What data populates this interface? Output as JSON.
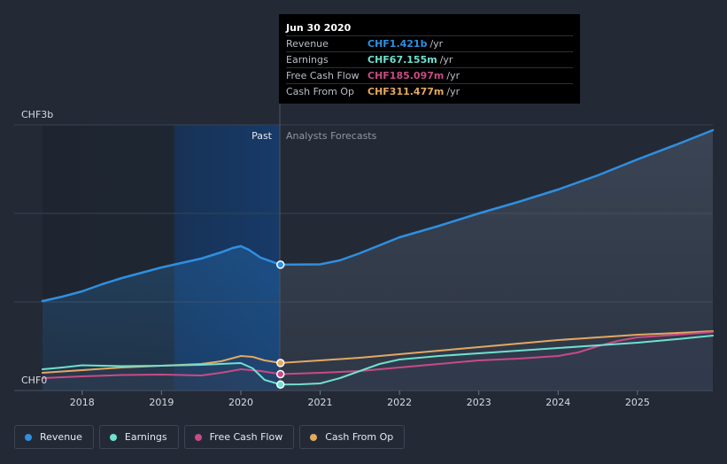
{
  "chart_data": {
    "type": "area",
    "currency": "CHF",
    "y_label_top": "CHF3b",
    "y_label_bottom": "CHF0",
    "ylim": [
      0,
      3.0
    ],
    "xlim": [
      2017.5,
      2025.95
    ],
    "x_ticks": [
      "2018",
      "2019",
      "2020",
      "2021",
      "2022",
      "2023",
      "2024",
      "2025"
    ],
    "x_tick_values": [
      2018,
      2019,
      2020,
      2021,
      2022,
      2023,
      2024,
      2025
    ],
    "divider_x": 2020.5,
    "past_label": "Past",
    "forecast_label": "Analysts Forecasts",
    "series": [
      {
        "name": "Revenue",
        "color": "#2f8fe0",
        "points": [
          [
            2017.5,
            1.01
          ],
          [
            2017.75,
            1.06
          ],
          [
            2018.0,
            1.12
          ],
          [
            2018.25,
            1.2
          ],
          [
            2018.5,
            1.27
          ],
          [
            2018.75,
            1.33
          ],
          [
            2019.0,
            1.39
          ],
          [
            2019.25,
            1.44
          ],
          [
            2019.5,
            1.49
          ],
          [
            2019.75,
            1.56
          ],
          [
            2019.9,
            1.61
          ],
          [
            2020.0,
            1.63
          ],
          [
            2020.1,
            1.59
          ],
          [
            2020.25,
            1.5
          ],
          [
            2020.5,
            1.421
          ],
          [
            2021.0,
            1.425
          ],
          [
            2021.25,
            1.47
          ],
          [
            2021.5,
            1.55
          ],
          [
            2021.75,
            1.64
          ],
          [
            2022.0,
            1.73
          ],
          [
            2022.5,
            1.86
          ],
          [
            2023.0,
            2.0
          ],
          [
            2023.5,
            2.13
          ],
          [
            2024.0,
            2.27
          ],
          [
            2024.5,
            2.43
          ],
          [
            2025.0,
            2.61
          ],
          [
            2025.5,
            2.78
          ],
          [
            2025.95,
            2.94
          ]
        ]
      },
      {
        "name": "Earnings",
        "color": "#6fe0cf",
        "points": [
          [
            2017.5,
            0.24
          ],
          [
            2017.75,
            0.26
          ],
          [
            2018.0,
            0.285
          ],
          [
            2018.25,
            0.28
          ],
          [
            2018.5,
            0.275
          ],
          [
            2019.0,
            0.28
          ],
          [
            2019.5,
            0.29
          ],
          [
            2019.75,
            0.3
          ],
          [
            2020.0,
            0.31
          ],
          [
            2020.15,
            0.25
          ],
          [
            2020.3,
            0.12
          ],
          [
            2020.5,
            0.067
          ],
          [
            2020.75,
            0.07
          ],
          [
            2021.0,
            0.08
          ],
          [
            2021.25,
            0.14
          ],
          [
            2021.5,
            0.22
          ],
          [
            2021.75,
            0.3
          ],
          [
            2022.0,
            0.35
          ],
          [
            2022.5,
            0.39
          ],
          [
            2023.0,
            0.42
          ],
          [
            2023.5,
            0.45
          ],
          [
            2024.0,
            0.48
          ],
          [
            2024.5,
            0.51
          ],
          [
            2025.0,
            0.54
          ],
          [
            2025.5,
            0.58
          ],
          [
            2025.95,
            0.62
          ]
        ]
      },
      {
        "name": "Free Cash Flow",
        "color": "#c84b86",
        "points": [
          [
            2017.5,
            0.14
          ],
          [
            2018.0,
            0.16
          ],
          [
            2018.5,
            0.175
          ],
          [
            2019.0,
            0.18
          ],
          [
            2019.5,
            0.17
          ],
          [
            2019.75,
            0.2
          ],
          [
            2020.0,
            0.24
          ],
          [
            2020.25,
            0.22
          ],
          [
            2020.5,
            0.185
          ],
          [
            2021.0,
            0.2
          ],
          [
            2021.5,
            0.22
          ],
          [
            2022.0,
            0.26
          ],
          [
            2022.5,
            0.3
          ],
          [
            2023.0,
            0.34
          ],
          [
            2023.5,
            0.36
          ],
          [
            2024.0,
            0.39
          ],
          [
            2024.25,
            0.43
          ],
          [
            2024.5,
            0.5
          ],
          [
            2024.75,
            0.56
          ],
          [
            2025.0,
            0.6
          ],
          [
            2025.5,
            0.63
          ],
          [
            2025.95,
            0.66
          ]
        ]
      },
      {
        "name": "Cash From Op",
        "color": "#e3a862",
        "points": [
          [
            2017.5,
            0.2
          ],
          [
            2018.0,
            0.23
          ],
          [
            2018.5,
            0.26
          ],
          [
            2019.0,
            0.28
          ],
          [
            2019.5,
            0.3
          ],
          [
            2019.75,
            0.33
          ],
          [
            2020.0,
            0.39
          ],
          [
            2020.15,
            0.38
          ],
          [
            2020.3,
            0.34
          ],
          [
            2020.5,
            0.311
          ],
          [
            2021.0,
            0.34
          ],
          [
            2021.5,
            0.37
          ],
          [
            2022.0,
            0.41
          ],
          [
            2022.5,
            0.45
          ],
          [
            2023.0,
            0.49
          ],
          [
            2023.5,
            0.53
          ],
          [
            2024.0,
            0.57
          ],
          [
            2024.5,
            0.6
          ],
          [
            2025.0,
            0.63
          ],
          [
            2025.5,
            0.65
          ],
          [
            2025.95,
            0.67
          ]
        ]
      }
    ]
  },
  "tooltip": {
    "date": "Jun 30 2020",
    "unit": "/yr",
    "rows": [
      {
        "label": "Revenue",
        "value": "CHF1.421b",
        "color": "#2f8fe0"
      },
      {
        "label": "Earnings",
        "value": "CHF67.155m",
        "color": "#6fe0cf"
      },
      {
        "label": "Free Cash Flow",
        "value": "CHF185.097m",
        "color": "#c84b86"
      },
      {
        "label": "Cash From Op",
        "value": "CHF311.477m",
        "color": "#e3a862"
      }
    ]
  },
  "legend": [
    {
      "label": "Revenue",
      "color": "#2f8fe0"
    },
    {
      "label": "Earnings",
      "color": "#6fe0cf"
    },
    {
      "label": "Free Cash Flow",
      "color": "#c84b86"
    },
    {
      "label": "Cash From Op",
      "color": "#e3a862"
    }
  ]
}
